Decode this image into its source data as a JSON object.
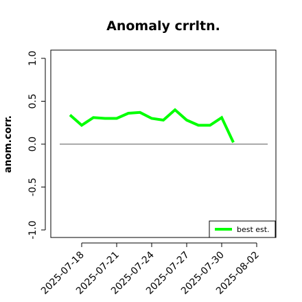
{
  "chart_data": {
    "type": "line",
    "title": "Anomaly crrltn.",
    "ylabel": "anom.corr.",
    "xlabel": "",
    "ylim": [
      -1.0,
      1.0
    ],
    "yticks": [
      -1.0,
      -0.5,
      0.0,
      0.5,
      1.0
    ],
    "ytick_labels": [
      "-1.0",
      "-0.5",
      "0.0",
      "0.5",
      "1.0"
    ],
    "xticks": [
      "2025-07-18",
      "2025-07-21",
      "2025-07-24",
      "2025-07-27",
      "2025-07-30",
      "2025-08-02"
    ],
    "highlight_tick": "2025-07-24",
    "highlight_color": "#228B22",
    "reference_line": 0.0,
    "grid": false,
    "legend_position": "bottom-right",
    "series": [
      {
        "name": "best est.",
        "color": "#00ff00",
        "x": [
          "2025-07-17",
          "2025-07-18",
          "2025-07-19",
          "2025-07-20",
          "2025-07-21",
          "2025-07-22",
          "2025-07-23",
          "2025-07-24",
          "2025-07-25",
          "2025-07-26",
          "2025-07-27",
          "2025-07-28",
          "2025-07-29",
          "2025-07-30",
          "2025-07-31"
        ],
        "values": [
          0.34,
          0.22,
          0.31,
          0.3,
          0.3,
          0.36,
          0.37,
          0.3,
          0.28,
          0.4,
          0.28,
          0.22,
          0.22,
          0.31,
          0.02
        ]
      }
    ]
  }
}
